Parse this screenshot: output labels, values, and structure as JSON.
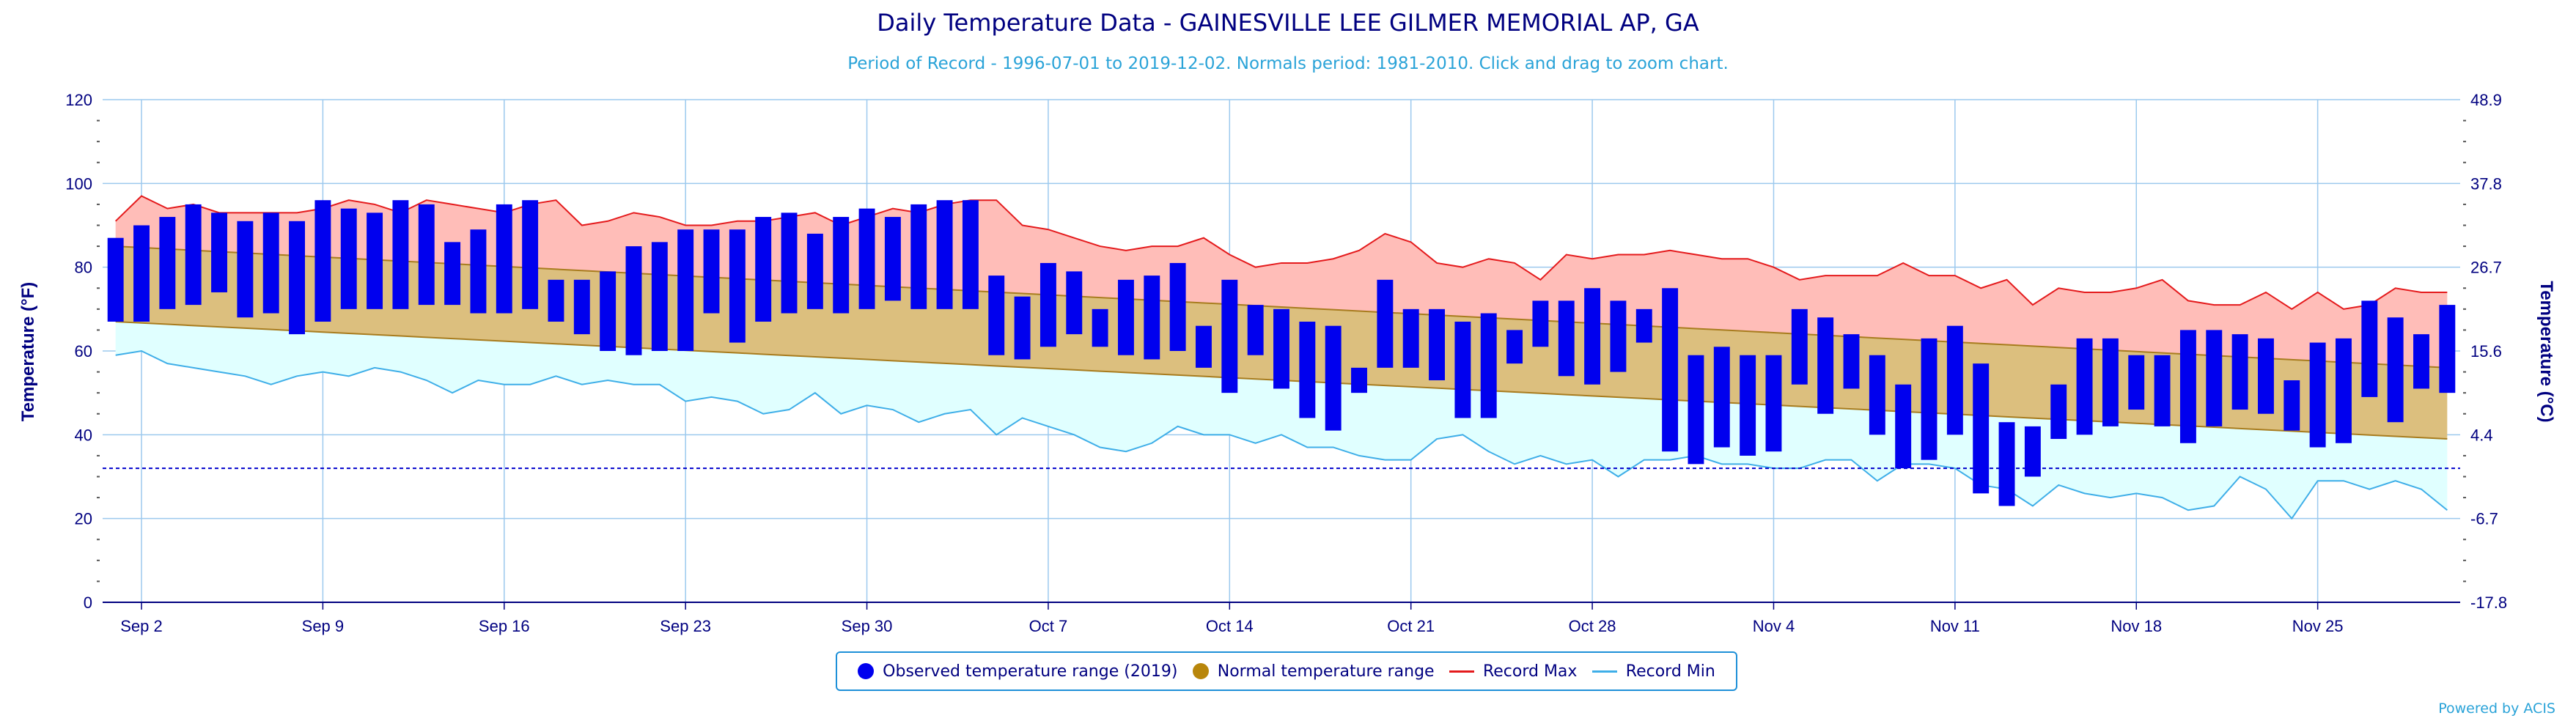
{
  "title": "Daily Temperature Data - GAINESVILLE LEE GILMER MEMORIAL AP, GA",
  "subtitle": "Period of Record - 1996-07-01 to 2019-12-02. Normals period: 1981-2010. Click and drag to zoom chart.",
  "credit": "Powered by ACIS",
  "legend": {
    "observed": "Observed temperature range (2019)",
    "normal": "Normal temperature range",
    "record_max": "Record Max",
    "record_min": "Record Min"
  },
  "colors": {
    "observed": "#0000ee",
    "normal_fill": "#dcbf7e",
    "normal_dot": "#b8860b",
    "record_max_line": "#e41a1c",
    "record_max_fill": "#ffbdb8",
    "record_min_line": "#3eaee8",
    "record_min_fill": "#e0ffff",
    "freeze_line": "#0000cc",
    "axis_text": "#000080"
  },
  "chart_data": {
    "type": "bar",
    "ylabel": "Temperature (°F)",
    "ylabel_right": "Temperature (°C)",
    "ylim": [
      0,
      120
    ],
    "yticks": [
      0,
      20,
      40,
      60,
      80,
      100,
      120
    ],
    "yticks_right": [
      "-17.8",
      "-6.7",
      "4.4",
      "15.6",
      "26.7",
      "37.8",
      "48.9"
    ],
    "freezing_line": 32,
    "x_start": "Sep 1",
    "x_end": "Dec 2",
    "x_tick_labels": [
      "Sep 2",
      "Sep 9",
      "Sep 16",
      "Sep 23",
      "Sep 30",
      "Oct 7",
      "Oct 14",
      "Oct 21",
      "Oct 28",
      "Nov 4",
      "Nov 11",
      "Nov 18",
      "Nov 25"
    ],
    "normal_max": {
      "start": 85,
      "end": 56
    },
    "normal_min": {
      "start": 67,
      "end": 39
    },
    "record_max": [
      91,
      97,
      94,
      95,
      93,
      93,
      93,
      93,
      94,
      96,
      95,
      93,
      96,
      95,
      94,
      93,
      95,
      96,
      90,
      91,
      93,
      92,
      90,
      90,
      91,
      91,
      92,
      93,
      90,
      92,
      94,
      93,
      95,
      96,
      96,
      90,
      89,
      87,
      85,
      84,
      85,
      85,
      87,
      83,
      80,
      81,
      81,
      82,
      84,
      88,
      86,
      81,
      80,
      82,
      81,
      77,
      83,
      82,
      83,
      83,
      84,
      83,
      82,
      82,
      80,
      77,
      78,
      78,
      78,
      81,
      78,
      78,
      75,
      77,
      71,
      75,
      74,
      74,
      75,
      77,
      72,
      71,
      71,
      74,
      70,
      74,
      70,
      71,
      75,
      74,
      74,
      73
    ],
    "record_min": [
      59,
      60,
      57,
      56,
      55,
      54,
      52,
      54,
      55,
      54,
      56,
      55,
      53,
      50,
      53,
      52,
      52,
      54,
      52,
      53,
      52,
      52,
      48,
      49,
      48,
      45,
      46,
      50,
      45,
      47,
      46,
      43,
      45,
      46,
      40,
      44,
      42,
      40,
      37,
      36,
      38,
      42,
      40,
      40,
      38,
      40,
      37,
      37,
      35,
      34,
      34,
      39,
      40,
      36,
      33,
      35,
      33,
      34,
      30,
      34,
      34,
      35,
      33,
      33,
      32,
      32,
      34,
      34,
      29,
      33,
      33,
      32,
      28,
      27,
      23,
      28,
      26,
      25,
      26,
      25,
      22,
      23,
      30,
      27,
      20,
      29,
      29,
      27,
      29,
      27,
      22,
      28
    ],
    "observed": [
      [
        67,
        87
      ],
      [
        67,
        90
      ],
      [
        70,
        92
      ],
      [
        71,
        95
      ],
      [
        74,
        93
      ],
      [
        68,
        91
      ],
      [
        69,
        93
      ],
      [
        64,
        91
      ],
      [
        67,
        96
      ],
      [
        70,
        94
      ],
      [
        70,
        93
      ],
      [
        70,
        96
      ],
      [
        71,
        95
      ],
      [
        71,
        86
      ],
      [
        69,
        89
      ],
      [
        69,
        95
      ],
      [
        70,
        96
      ],
      [
        67,
        77
      ],
      [
        64,
        77
      ],
      [
        60,
        79
      ],
      [
        59,
        85
      ],
      [
        60,
        86
      ],
      [
        60,
        89
      ],
      [
        69,
        89
      ],
      [
        62,
        89
      ],
      [
        67,
        92
      ],
      [
        69,
        93
      ],
      [
        70,
        88
      ],
      [
        69,
        92
      ],
      [
        70,
        94
      ],
      [
        72,
        92
      ],
      [
        70,
        95
      ],
      [
        70,
        96
      ],
      [
        70,
        96
      ],
      [
        59,
        78
      ],
      [
        58,
        73
      ],
      [
        61,
        81
      ],
      [
        64,
        79
      ],
      [
        61,
        70
      ],
      [
        59,
        77
      ],
      [
        58,
        78
      ],
      [
        60,
        81
      ],
      [
        56,
        66
      ],
      [
        50,
        77
      ],
      [
        59,
        71
      ],
      [
        51,
        70
      ],
      [
        44,
        67
      ],
      [
        41,
        66
      ],
      [
        50,
        56
      ],
      [
        56,
        77
      ],
      [
        56,
        70
      ],
      [
        53,
        70
      ],
      [
        44,
        67
      ],
      [
        44,
        69
      ],
      [
        57,
        65
      ],
      [
        61,
        72
      ],
      [
        54,
        72
      ],
      [
        52,
        75
      ],
      [
        55,
        72
      ],
      [
        62,
        70
      ],
      [
        36,
        75
      ],
      [
        33,
        59
      ],
      [
        37,
        61
      ],
      [
        35,
        59
      ],
      [
        36,
        59
      ],
      [
        52,
        70
      ],
      [
        45,
        68
      ],
      [
        51,
        64
      ],
      [
        40,
        59
      ],
      [
        32,
        52
      ],
      [
        34,
        63
      ],
      [
        40,
        66
      ],
      [
        26,
        57
      ],
      [
        23,
        43
      ],
      [
        30,
        42
      ],
      [
        39,
        52
      ],
      [
        40,
        63
      ],
      [
        42,
        63
      ],
      [
        46,
        59
      ],
      [
        42,
        59
      ],
      [
        38,
        65
      ],
      [
        42,
        65
      ],
      [
        46,
        64
      ],
      [
        45,
        63
      ],
      [
        41,
        53
      ],
      [
        37,
        62
      ],
      [
        38,
        63
      ],
      [
        49,
        72
      ],
      [
        43,
        68
      ],
      [
        51,
        64
      ],
      [
        50,
        71
      ]
    ]
  }
}
